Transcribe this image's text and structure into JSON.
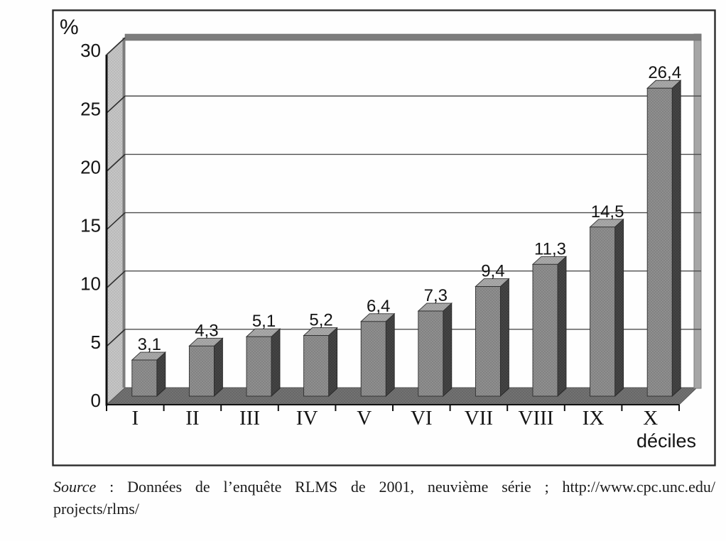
{
  "chart_data": {
    "type": "bar",
    "variant": "3d-column-grayscale",
    "title": "",
    "categories": [
      "I",
      "II",
      "III",
      "IV",
      "V",
      "VI",
      "VII",
      "VIII",
      "IX",
      "X"
    ],
    "values": [
      3.1,
      4.3,
      5.1,
      5.2,
      6.4,
      7.3,
      9.4,
      11.3,
      14.5,
      26.4
    ],
    "value_labels": [
      "3,1",
      "4,3",
      "5,1",
      "5,2",
      "6,4",
      "7,3",
      "9,4",
      "11,3",
      "14,5",
      "26,4"
    ],
    "decimal_separator": ",",
    "ylabel": "%",
    "xlabel": "déciles",
    "ylim": [
      0,
      30
    ],
    "yticks": [
      0,
      5,
      10,
      15,
      20,
      25,
      30
    ],
    "grid": true,
    "legend": false,
    "series_count": 1
  },
  "caption": {
    "source_label": "Source",
    "source_text_line1": " : Données de l’enquête RLMS de 2001, neuvième série ; http://www.cpc.unc.edu/",
    "source_text_line2": "projects/rlms/"
  },
  "palette": {
    "paper": "#fefefe",
    "frame": "#2b2b2b",
    "text": "#141414",
    "bar_front": "#8f8f8f",
    "bar_top": "#a9a9a9",
    "bar_side": "#454545",
    "floor": "#727272",
    "wall": "#c5c5c5",
    "wall_edge": "#7d7d7d",
    "right_band": "#a6a6a6",
    "gridline": "#4d4d4d",
    "axis": "#111111"
  }
}
